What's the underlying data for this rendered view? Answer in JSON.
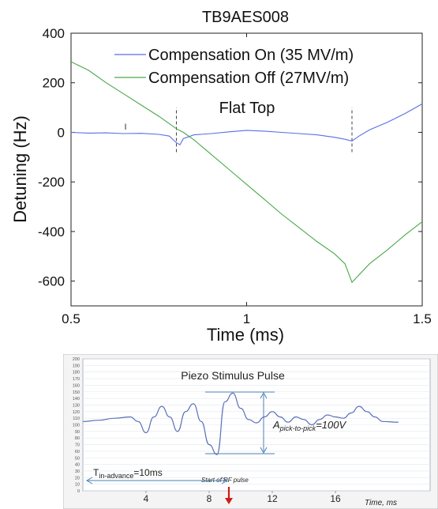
{
  "chart_data": [
    {
      "type": "line",
      "title": "TB9AES008",
      "xlabel": "Time (ms)",
      "ylabel": "Detuning (Hz)",
      "xlim": [
        0.5,
        1.5
      ],
      "ylim": [
        -700,
        400
      ],
      "xticks": [
        "0.5",
        "1",
        "1.5"
      ],
      "yticks": [
        "400",
        "200",
        "0",
        "-200",
        "-400",
        "-600"
      ],
      "legend_position": "top-right",
      "annotations": [
        "Flat Top"
      ],
      "markers_x": [
        0.8,
        1.3
      ],
      "series": [
        {
          "name": "Compensation On (35 MV/m)",
          "color": "#5a6ee6",
          "x": [
            0.5,
            0.55,
            0.6,
            0.65,
            0.7,
            0.75,
            0.78,
            0.8,
            0.81,
            0.82,
            0.85,
            0.9,
            0.95,
            1.0,
            1.05,
            1.1,
            1.15,
            1.2,
            1.25,
            1.28,
            1.3,
            1.32,
            1.35,
            1.4,
            1.45,
            1.5
          ],
          "y": [
            0,
            -3,
            -2,
            -5,
            -4,
            -8,
            -15,
            -42,
            -50,
            -25,
            -10,
            -5,
            2,
            8,
            5,
            0,
            -5,
            -10,
            -20,
            -28,
            -35,
            -15,
            10,
            40,
            75,
            115
          ]
        },
        {
          "name": "Compensation Off (27MV/m)",
          "color": "#4aa84a",
          "x": [
            0.5,
            0.55,
            0.6,
            0.65,
            0.7,
            0.75,
            0.8,
            0.82,
            0.85,
            0.9,
            0.95,
            1.0,
            1.05,
            1.1,
            1.15,
            1.2,
            1.25,
            1.28,
            1.3,
            1.32,
            1.35,
            1.4,
            1.45,
            1.5
          ],
          "y": [
            285,
            250,
            200,
            155,
            110,
            65,
            15,
            0,
            -30,
            -90,
            -150,
            -210,
            -270,
            -330,
            -385,
            -440,
            -490,
            -530,
            -605,
            -575,
            -530,
            -475,
            -415,
            -360
          ]
        }
      ]
    },
    {
      "type": "line",
      "title": "Piezo Stimulus Pulse",
      "xlabel": "Time, ms",
      "xlim": [
        0,
        22
      ],
      "ylim": [
        0,
        200
      ],
      "xticks": [
        "4",
        "8",
        "12",
        "16"
      ],
      "yticks": [
        "200",
        "190",
        "180",
        "170",
        "160",
        "150",
        "140",
        "130",
        "120",
        "110",
        "100",
        "90",
        "80",
        "70",
        "60",
        "50",
        "40",
        "30",
        "20",
        "10",
        "0"
      ],
      "annotations": {
        "amplitude_prefix": "A",
        "amplitude_sub": "pick-to-pick",
        "amplitude_suffix": "=100V",
        "advance_prefix": "T",
        "advance_sub": "in-advance",
        "advance_suffix": "=10ms",
        "rf_pulse": "Start of RF pulse"
      },
      "series": [
        {
          "color": "#5b6fb8",
          "x": [
            0,
            1,
            2,
            3,
            3.5,
            4,
            4.5,
            5,
            5.5,
            6,
            6.5,
            7,
            7.5,
            8,
            8.5,
            9,
            9.5,
            10,
            10.5,
            11,
            11.5,
            12,
            12.5,
            13,
            13.5,
            14,
            14.5,
            15,
            15.5,
            16,
            16.5,
            17,
            17.5,
            18,
            18.5,
            19,
            20
          ],
          "y": [
            105,
            107,
            110,
            112,
            105,
            88,
            112,
            128,
            112,
            90,
            120,
            132,
            105,
            70,
            55,
            135,
            148,
            125,
            108,
            103,
            112,
            120,
            112,
            104,
            112,
            108,
            100,
            108,
            115,
            112,
            110,
            118,
            128,
            120,
            112,
            105,
            104
          ]
        }
      ]
    }
  ]
}
